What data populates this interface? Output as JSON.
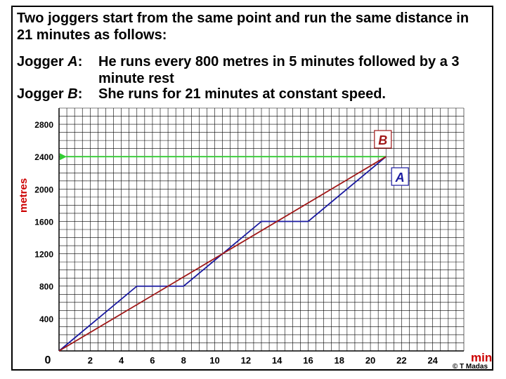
{
  "title_line": "Two joggers start from the same point and run the same distance in 21 minutes as follows:",
  "jogger_a": {
    "label_prefix": "Jogger ",
    "name": "A",
    "label_suffix": ":",
    "text": "He runs every 800 metres in 5 minutes followed by a 3 minute rest"
  },
  "jogger_b": {
    "label_prefix": "Jogger ",
    "name": "B",
    "label_suffix": ":",
    "text": "She runs for 21 minutes at constant speed."
  },
  "copyright": "© T Madas",
  "colors": {
    "jogger_a": "#1a1aa0",
    "jogger_b": "#a01818",
    "guide": "#33cc33",
    "grid": "#000000"
  },
  "chart_data": {
    "type": "line",
    "xlabel": "min",
    "ylabel": "metres",
    "xlim": [
      0,
      26
    ],
    "ylim": [
      0,
      3000
    ],
    "x_ticks": [
      0,
      2,
      4,
      6,
      8,
      10,
      12,
      14,
      16,
      18,
      20,
      22,
      24
    ],
    "x_tick_labels": [
      "0",
      "2",
      "4",
      "6",
      "8",
      "10",
      "12",
      "14",
      "16",
      "18",
      "20",
      "22",
      "24"
    ],
    "y_ticks": [
      400,
      800,
      1200,
      1600,
      2000,
      2400,
      2800
    ],
    "y_tick_labels": [
      "400",
      "800",
      "1200",
      "1600",
      "2000",
      "2400",
      "2800"
    ],
    "grid": true,
    "series": [
      {
        "name": "A",
        "points": [
          [
            0,
            0
          ],
          [
            5,
            800
          ],
          [
            8,
            800
          ],
          [
            13,
            1600
          ],
          [
            16,
            1600
          ],
          [
            21,
            2400
          ]
        ]
      },
      {
        "name": "B",
        "points": [
          [
            0,
            0
          ],
          [
            21,
            2400
          ]
        ]
      }
    ],
    "guide_line": {
      "y": 2400,
      "x_from": 21,
      "x_to": 0,
      "arrow": true
    },
    "series_labels": [
      {
        "text": "B",
        "x": 20.8,
        "y": 2610
      },
      {
        "text": "A",
        "x": 21.9,
        "y": 2150
      }
    ]
  }
}
